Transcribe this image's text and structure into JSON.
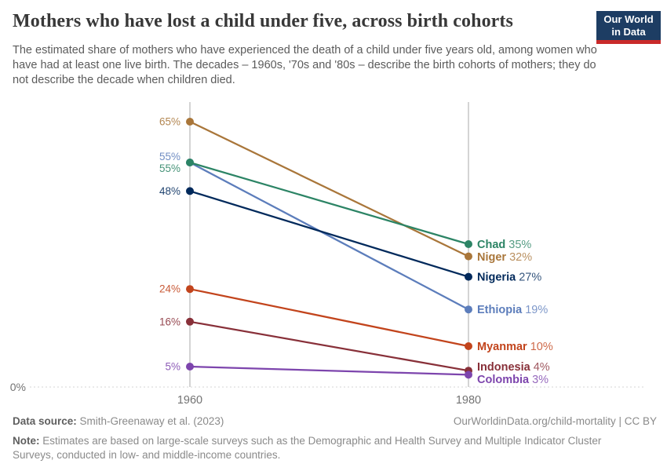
{
  "header": {
    "title": "Mothers who have lost a child under five, across birth cohorts",
    "subtitle": "The estimated share of mothers who have experienced the death of a child under five years old, among women who have had at least one live birth. The decades – 1960s, '70s and '80s – describe the birth cohorts of mothers; they do not describe the decade when children died.",
    "logo": {
      "line1": "Our World",
      "line2": "in Data",
      "bg_color": "#1d3d63",
      "bar_color": "#c92a2a"
    }
  },
  "chart_data": {
    "type": "line",
    "variant": "slope",
    "x": [
      1960,
      1980
    ],
    "x_tick_labels": [
      "1960",
      "1980"
    ],
    "series": [
      {
        "name": "Niger",
        "values": [
          65,
          32
        ],
        "color": "#A9763A"
      },
      {
        "name": "Ethiopia",
        "values": [
          55,
          19
        ],
        "color": "#5C7DBB"
      },
      {
        "name": "Chad",
        "values": [
          55,
          35
        ],
        "color": "#2C8465"
      },
      {
        "name": "Nigeria",
        "values": [
          48,
          27
        ],
        "color": "#00295B"
      },
      {
        "name": "Myanmar",
        "values": [
          24,
          10
        ],
        "color": "#C2441C"
      },
      {
        "name": "Indonesia",
        "values": [
          16,
          4
        ],
        "color": "#883039"
      },
      {
        "name": "Colombia",
        "values": [
          5,
          3
        ],
        "color": "#7D45AD"
      }
    ],
    "value_suffix": "%",
    "baseline_value": 0,
    "baseline_label": "0%",
    "ylim": [
      0,
      70
    ],
    "grid": "dashed baseline only",
    "legend_position": "inline right of 1980 axis",
    "axis_color": "#a8a8a8",
    "baseline_color": "#d6d6d6",
    "tick_label_color": "#737373"
  },
  "footer": {
    "datasource_label": "Data source:",
    "datasource_text": " Smith-Greenaway et al. (2023)",
    "link_text": "OurWorldinData.org/child-mortality | CC BY",
    "note_label": "Note:",
    "note_text": " Estimates are based on large-scale surveys such as the Demographic and Health Survey and Multiple Indicator Cluster Surveys, conducted in low- and middle-income countries."
  }
}
